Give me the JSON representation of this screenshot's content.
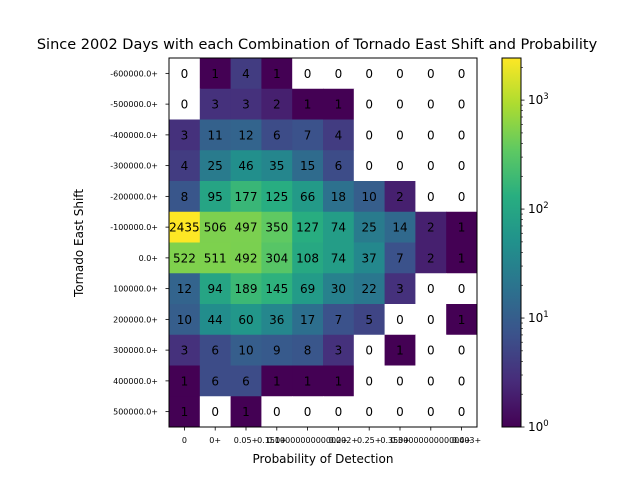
{
  "chart_data": {
    "type": "heatmap",
    "title": "Since 2002 Days with each Combination of Tornado East Shift and Probability",
    "xlabel": "Probability of Detection",
    "ylabel": "Tornado East Shift",
    "x_tick_labels": [
      "0",
      "0+",
      "0.05+",
      "0.1+",
      "0.15000000000000002+",
      "0.2+",
      "0.25+",
      "0.3+",
      "0.35000000000000003+",
      "0.4+"
    ],
    "y_tick_labels": [
      "-600000.0+",
      "-500000.0+",
      "-400000.0+",
      "-300000.0+",
      "-200000.0+",
      "-100000.0+",
      "0.0+",
      "100000.0+",
      "200000.0+",
      "300000.0+",
      "400000.0+",
      "500000.0+"
    ],
    "values": [
      [
        0,
        1,
        4,
        1,
        0,
        0,
        0,
        0,
        0,
        0
      ],
      [
        0,
        3,
        3,
        2,
        1,
        1,
        0,
        0,
        0,
        0
      ],
      [
        3,
        11,
        12,
        6,
        7,
        4,
        0,
        0,
        0,
        0
      ],
      [
        4,
        25,
        46,
        35,
        15,
        6,
        0,
        0,
        0,
        0
      ],
      [
        8,
        95,
        177,
        125,
        66,
        18,
        10,
        2,
        0,
        0
      ],
      [
        2435,
        506,
        497,
        350,
        127,
        74,
        25,
        14,
        2,
        1
      ],
      [
        522,
        511,
        492,
        304,
        108,
        74,
        37,
        7,
        2,
        1
      ],
      [
        12,
        94,
        189,
        145,
        69,
        30,
        22,
        3,
        0,
        0
      ],
      [
        10,
        44,
        60,
        36,
        17,
        7,
        5,
        0,
        0,
        1
      ],
      [
        3,
        6,
        10,
        9,
        8,
        3,
        0,
        1,
        0,
        0
      ],
      [
        1,
        6,
        6,
        1,
        1,
        1,
        0,
        0,
        0,
        0
      ],
      [
        1,
        0,
        1,
        0,
        0,
        0,
        0,
        0,
        0,
        0
      ]
    ],
    "colorbar": {
      "scale": "log",
      "range": [
        1,
        2435
      ],
      "ticks": [
        {
          "base": "10",
          "exp": "0",
          "value": 1
        },
        {
          "base": "10",
          "exp": "1",
          "value": 10
        },
        {
          "base": "10",
          "exp": "2",
          "value": 100
        },
        {
          "base": "10",
          "exp": "3",
          "value": 1000
        }
      ],
      "colormap": "viridis"
    },
    "zero_cells": "white",
    "grid": false
  }
}
